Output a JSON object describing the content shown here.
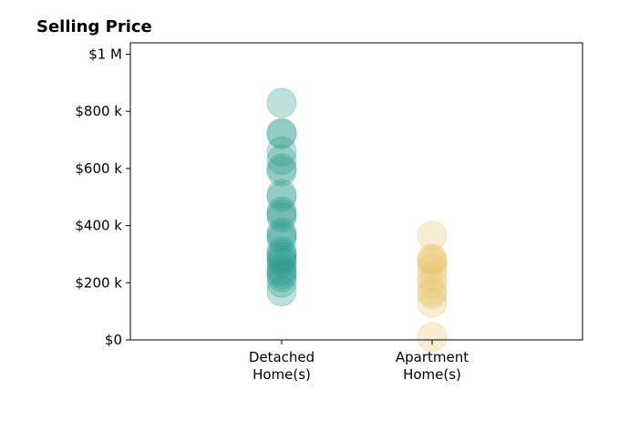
{
  "chart_data": {
    "type": "scatter",
    "title": "Selling Price",
    "xlabel": "",
    "ylabel": "",
    "categories": [
      [
        "Detached",
        "Home(s)"
      ],
      [
        "Apartment",
        "Home(s)"
      ]
    ],
    "y_ticks": [
      {
        "value": 0,
        "label": "$0"
      },
      {
        "value": 200000,
        "label": "$200 k"
      },
      {
        "value": 400000,
        "label": "$400 k"
      },
      {
        "value": 600000,
        "label": "$600 k"
      },
      {
        "value": 800000,
        "label": "$800 k"
      },
      {
        "value": 1000000,
        "label": "$1 M"
      }
    ],
    "ylim": [
      0,
      1040000
    ],
    "grid": false,
    "legend": "none",
    "series": [
      {
        "category_index": 0,
        "color": "#2a9d8f",
        "values": [
          830000,
          725000,
          720000,
          660000,
          630000,
          600000,
          590000,
          510000,
          500000,
          450000,
          440000,
          430000,
          375000,
          365000,
          355000,
          310000,
          300000,
          290000,
          280000,
          270000,
          250000,
          240000,
          230000,
          220000,
          200000,
          170000
        ]
      },
      {
        "category_index": 1,
        "color": "#e9c46a",
        "values": [
          365000,
          285000,
          280000,
          270000,
          250000,
          220000,
          200000,
          170000,
          160000,
          130000,
          10000
        ]
      }
    ]
  }
}
